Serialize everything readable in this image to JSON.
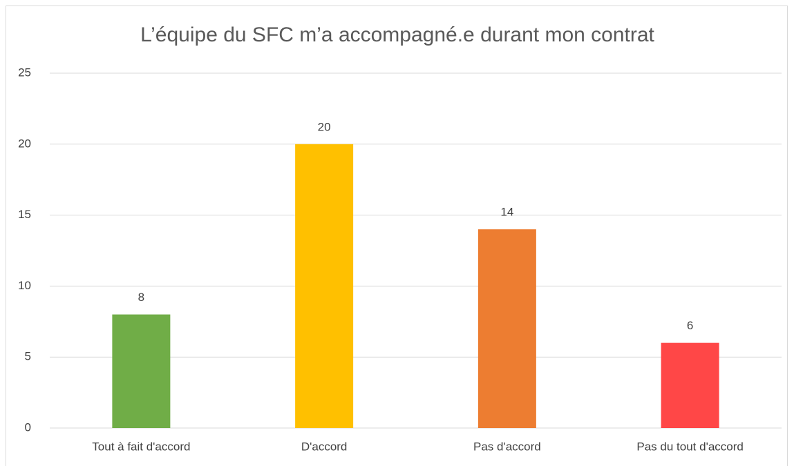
{
  "chart_data": {
    "type": "bar",
    "title": "L’équipe du SFC m’a accompagné.e durant mon contrat",
    "categories": [
      "Tout à fait d'accord",
      "D'accord",
      "Pas d'accord",
      "Pas du tout d'accord"
    ],
    "values": [
      8,
      20,
      14,
      6
    ],
    "colors": [
      "#70ad47",
      "#ffc000",
      "#ed7d31",
      "#ff4747"
    ],
    "ylim": [
      0,
      25
    ],
    "yticks": [
      0,
      5,
      10,
      15,
      20,
      25
    ],
    "grid": true
  }
}
